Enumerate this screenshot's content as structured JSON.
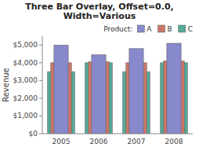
{
  "chart_data": {
    "type": "bar",
    "title": "Three Bar Overlay, Offset=0.0,\nWidth=Various",
    "ylabel": "Revenue",
    "categories": [
      "2005",
      "2006",
      "2007",
      "2008"
    ],
    "series": [
      {
        "name": "A",
        "color": "#8888cc",
        "values": [
          5000,
          4450,
          4800,
          5100
        ]
      },
      {
        "name": "B",
        "color": "#cc7766",
        "values": [
          4000,
          4050,
          4000,
          4100
        ]
      },
      {
        "name": "C",
        "color": "#55aa99",
        "values": [
          3500,
          4000,
          3500,
          4000
        ]
      }
    ],
    "ylim": [
      0,
      5500
    ],
    "yticks": [
      {
        "value": 0,
        "label": "$0"
      },
      {
        "value": 1000,
        "label": "$1,000"
      },
      {
        "value": 2000,
        "label": "$2,000"
      },
      {
        "value": 3000,
        "label": "$3,000"
      },
      {
        "value": 4000,
        "label": "$4,000"
      },
      {
        "value": 5000,
        "label": "$5,000"
      }
    ],
    "legend": "upper right",
    "legend_title": "Product:",
    "grid": false
  }
}
